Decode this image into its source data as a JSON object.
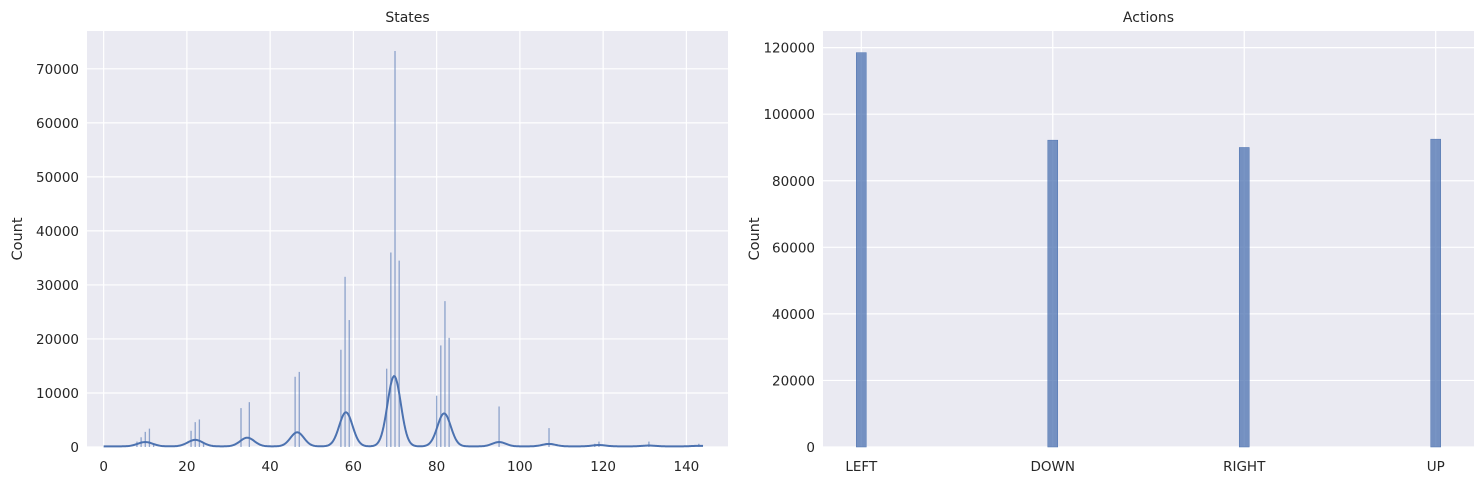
{
  "colors": {
    "background": "#eaeaf2",
    "grid": "#ffffff",
    "bar": "#4c72b0",
    "text": "#262626"
  },
  "chart_data": [
    {
      "type": "bar",
      "title": "States",
      "ylabel": "Count",
      "xlabel": "",
      "xlim": [
        -4,
        150
      ],
      "ylim": [
        0,
        77000
      ],
      "xticks": [
        0,
        20,
        40,
        60,
        80,
        100,
        120,
        140
      ],
      "yticks": [
        0,
        10000,
        20000,
        30000,
        40000,
        50000,
        60000,
        70000
      ],
      "grid": true,
      "bins": [
        {
          "x": 1,
          "count": 200
        },
        {
          "x": 8,
          "count": 1000
        },
        {
          "x": 9,
          "count": 1800
        },
        {
          "x": 10,
          "count": 2800
        },
        {
          "x": 11,
          "count": 3400
        },
        {
          "x": 12,
          "count": 600
        },
        {
          "x": 21,
          "count": 3000
        },
        {
          "x": 22,
          "count": 4600
        },
        {
          "x": 23,
          "count": 5100
        },
        {
          "x": 24,
          "count": 600
        },
        {
          "x": 33,
          "count": 7200
        },
        {
          "x": 35,
          "count": 8300
        },
        {
          "x": 46,
          "count": 13000
        },
        {
          "x": 47,
          "count": 13900
        },
        {
          "x": 57,
          "count": 18000
        },
        {
          "x": 58,
          "count": 31500
        },
        {
          "x": 59,
          "count": 23500
        },
        {
          "x": 68,
          "count": 14500
        },
        {
          "x": 69,
          "count": 36000
        },
        {
          "x": 70,
          "count": 73300
        },
        {
          "x": 71,
          "count": 34500
        },
        {
          "x": 80,
          "count": 9500
        },
        {
          "x": 81,
          "count": 18800
        },
        {
          "x": 82,
          "count": 27000
        },
        {
          "x": 83,
          "count": 20200
        },
        {
          "x": 95,
          "count": 7500
        },
        {
          "x": 107,
          "count": 3500
        },
        {
          "x": 118,
          "count": 600
        },
        {
          "x": 119,
          "count": 1000
        },
        {
          "x": 131,
          "count": 1000
        },
        {
          "x": 142,
          "count": 300
        },
        {
          "x": 143,
          "count": 600
        }
      ],
      "kde": {
        "peaks": [
          {
            "x": 10,
            "height": 800,
            "sigma": 1.8
          },
          {
            "x": 22,
            "height": 1200,
            "sigma": 1.8
          },
          {
            "x": 34.5,
            "height": 1600,
            "sigma": 1.7
          },
          {
            "x": 46.5,
            "height": 2600,
            "sigma": 1.6
          },
          {
            "x": 58.2,
            "height": 6300,
            "sigma": 1.6
          },
          {
            "x": 69.8,
            "height": 13000,
            "sigma": 1.6
          },
          {
            "x": 81.8,
            "height": 6100,
            "sigma": 1.6
          },
          {
            "x": 95,
            "height": 800,
            "sigma": 1.6
          },
          {
            "x": 107,
            "height": 450,
            "sigma": 1.6
          },
          {
            "x": 119,
            "height": 250,
            "sigma": 1.6
          },
          {
            "x": 131,
            "height": 150,
            "sigma": 1.6
          },
          {
            "x": 143,
            "height": 100,
            "sigma": 1.6
          }
        ],
        "baseline": 120
      }
    },
    {
      "type": "bar",
      "title": "Actions",
      "ylabel": "Count",
      "xlabel": "",
      "categories": [
        "LEFT",
        "DOWN",
        "RIGHT",
        "UP"
      ],
      "values": [
        118500,
        92200,
        90000,
        92500
      ],
      "ylim": [
        0,
        125000
      ],
      "yticks": [
        0,
        20000,
        40000,
        60000,
        80000,
        100000,
        120000
      ],
      "grid": true
    }
  ]
}
